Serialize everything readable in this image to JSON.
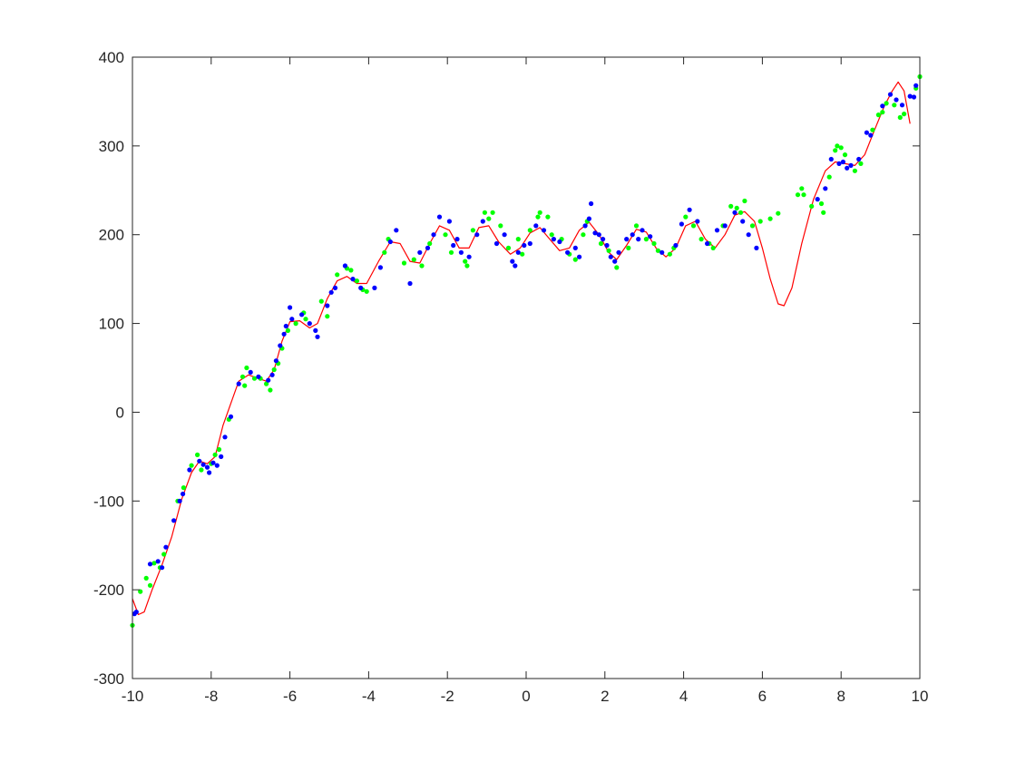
{
  "chart_data": {
    "type": "scatter",
    "title": "",
    "xlabel": "",
    "ylabel": "",
    "xlim": [
      -10,
      10
    ],
    "ylim": [
      -300,
      400
    ],
    "x_ticks": [
      "-10",
      "-8",
      "-6",
      "-4",
      "-2",
      "0",
      "2",
      "4",
      "6",
      "8",
      "10"
    ],
    "y_ticks": [
      "400",
      "300",
      "200",
      "100",
      "0",
      "-100",
      "-200",
      "-300"
    ],
    "grid": false,
    "box": true,
    "colors": {
      "blue": "#0000ff",
      "green": "#00ff00",
      "red": "#ff0000",
      "axis": "#262626"
    },
    "series": [
      {
        "type": "scatter",
        "color": "#0000ff",
        "points": [
          [
            -9.95,
            -227
          ],
          [
            -9.9,
            -225
          ],
          [
            -9.55,
            -171
          ],
          [
            -9.35,
            -168
          ],
          [
            -9.25,
            -175
          ],
          [
            -9.15,
            -152
          ],
          [
            -8.95,
            -122
          ],
          [
            -8.8,
            -100
          ],
          [
            -8.72,
            -92
          ],
          [
            -8.55,
            -65
          ],
          [
            -8.3,
            -55
          ],
          [
            -8.2,
            -59
          ],
          [
            -8.1,
            -62
          ],
          [
            -8.05,
            -68
          ],
          [
            -7.95,
            -57
          ],
          [
            -7.85,
            -60
          ],
          [
            -7.75,
            -50
          ],
          [
            -7.65,
            -28
          ],
          [
            -7.5,
            -5
          ],
          [
            -7.3,
            32
          ],
          [
            -7.0,
            45
          ],
          [
            -6.8,
            40
          ],
          [
            -6.55,
            36
          ],
          [
            -6.45,
            42
          ],
          [
            -6.35,
            58
          ],
          [
            -6.25,
            75
          ],
          [
            -6.15,
            88
          ],
          [
            -6.1,
            97
          ],
          [
            -6.0,
            118
          ],
          [
            -5.95,
            105
          ],
          [
            -5.7,
            110
          ],
          [
            -5.5,
            100
          ],
          [
            -5.35,
            92
          ],
          [
            -5.3,
            85
          ],
          [
            -5.05,
            120
          ],
          [
            -4.95,
            135
          ],
          [
            -4.85,
            140
          ],
          [
            -4.6,
            165
          ],
          [
            -4.4,
            150
          ],
          [
            -4.2,
            140
          ],
          [
            -3.85,
            140
          ],
          [
            -3.7,
            163
          ],
          [
            -3.45,
            192
          ],
          [
            -3.3,
            205
          ],
          [
            -2.95,
            145
          ],
          [
            -2.7,
            180
          ],
          [
            -2.5,
            185
          ],
          [
            -2.35,
            200
          ],
          [
            -2.2,
            220
          ],
          [
            -1.95,
            215
          ],
          [
            -1.85,
            188
          ],
          [
            -1.75,
            195
          ],
          [
            -1.65,
            180
          ],
          [
            -1.45,
            175
          ],
          [
            -1.25,
            200
          ],
          [
            -1.1,
            215
          ],
          [
            -0.75,
            190
          ],
          [
            -0.55,
            200
          ],
          [
            -0.35,
            170
          ],
          [
            -0.28,
            165
          ],
          [
            -0.2,
            180
          ],
          [
            -0.05,
            188
          ],
          [
            0.1,
            190
          ],
          [
            0.25,
            210
          ],
          [
            0.45,
            205
          ],
          [
            0.7,
            195
          ],
          [
            0.85,
            192
          ],
          [
            1.05,
            180
          ],
          [
            1.25,
            185
          ],
          [
            1.35,
            175
          ],
          [
            1.5,
            210
          ],
          [
            1.6,
            218
          ],
          [
            1.65,
            235
          ],
          [
            1.75,
            202
          ],
          [
            1.85,
            200
          ],
          [
            1.95,
            195
          ],
          [
            2.05,
            188
          ],
          [
            2.15,
            175
          ],
          [
            2.25,
            170
          ],
          [
            2.35,
            180
          ],
          [
            2.55,
            195
          ],
          [
            2.7,
            200
          ],
          [
            2.85,
            195
          ],
          [
            2.95,
            205
          ],
          [
            3.15,
            198
          ],
          [
            3.45,
            180
          ],
          [
            3.8,
            188
          ],
          [
            3.95,
            212
          ],
          [
            4.15,
            228
          ],
          [
            4.35,
            215
          ],
          [
            4.6,
            190
          ],
          [
            4.85,
            205
          ],
          [
            5.05,
            210
          ],
          [
            5.3,
            225
          ],
          [
            5.5,
            215
          ],
          [
            5.65,
            200
          ],
          [
            5.85,
            185
          ],
          [
            7.4,
            240
          ],
          [
            7.6,
            252
          ],
          [
            7.75,
            285
          ],
          [
            7.95,
            280
          ],
          [
            8.05,
            282
          ],
          [
            8.15,
            275
          ],
          [
            8.25,
            278
          ],
          [
            8.45,
            285
          ],
          [
            8.65,
            315
          ],
          [
            8.75,
            312
          ],
          [
            9.05,
            345
          ],
          [
            9.25,
            358
          ],
          [
            9.4,
            352
          ],
          [
            9.55,
            346
          ],
          [
            9.75,
            356
          ],
          [
            9.85,
            355
          ],
          [
            9.9,
            368
          ]
        ]
      },
      {
        "type": "scatter",
        "color": "#00ff00",
        "points": [
          [
            -10.0,
            -240
          ],
          [
            -9.8,
            -202
          ],
          [
            -9.65,
            -187
          ],
          [
            -9.55,
            -195
          ],
          [
            -9.45,
            -170
          ],
          [
            -9.3,
            -175
          ],
          [
            -9.2,
            -160
          ],
          [
            -8.85,
            -100
          ],
          [
            -8.7,
            -85
          ],
          [
            -8.5,
            -60
          ],
          [
            -8.35,
            -48
          ],
          [
            -8.25,
            -65
          ],
          [
            -8.0,
            -58
          ],
          [
            -7.9,
            -48
          ],
          [
            -7.8,
            -42
          ],
          [
            -7.55,
            -8
          ],
          [
            -7.2,
            40
          ],
          [
            -7.15,
            30
          ],
          [
            -7.1,
            50
          ],
          [
            -6.9,
            38
          ],
          [
            -6.75,
            38
          ],
          [
            -6.6,
            32
          ],
          [
            -6.5,
            25
          ],
          [
            -6.4,
            48
          ],
          [
            -6.3,
            55
          ],
          [
            -6.2,
            72
          ],
          [
            -6.05,
            92
          ],
          [
            -5.85,
            100
          ],
          [
            -5.65,
            112
          ],
          [
            -5.6,
            105
          ],
          [
            -5.2,
            125
          ],
          [
            -5.05,
            108
          ],
          [
            -4.8,
            155
          ],
          [
            -4.55,
            162
          ],
          [
            -4.45,
            160
          ],
          [
            -4.3,
            148
          ],
          [
            -4.15,
            138
          ],
          [
            -4.05,
            136
          ],
          [
            -3.6,
            180
          ],
          [
            -3.5,
            195
          ],
          [
            -3.1,
            168
          ],
          [
            -2.85,
            172
          ],
          [
            -2.65,
            165
          ],
          [
            -2.45,
            190
          ],
          [
            -2.05,
            200
          ],
          [
            -1.9,
            180
          ],
          [
            -1.55,
            170
          ],
          [
            -1.5,
            165
          ],
          [
            -1.35,
            205
          ],
          [
            -1.05,
            225
          ],
          [
            -0.95,
            218
          ],
          [
            -0.85,
            225
          ],
          [
            -0.65,
            210
          ],
          [
            -0.45,
            185
          ],
          [
            -0.2,
            195
          ],
          [
            -0.1,
            178
          ],
          [
            0.1,
            205
          ],
          [
            0.3,
            220
          ],
          [
            0.35,
            225
          ],
          [
            0.55,
            220
          ],
          [
            0.65,
            200
          ],
          [
            0.9,
            195
          ],
          [
            1.1,
            178
          ],
          [
            1.25,
            172
          ],
          [
            1.45,
            200
          ],
          [
            1.55,
            215
          ],
          [
            1.9,
            190
          ],
          [
            2.1,
            182
          ],
          [
            2.3,
            163
          ],
          [
            2.6,
            185
          ],
          [
            2.8,
            210
          ],
          [
            3.05,
            195
          ],
          [
            3.25,
            190
          ],
          [
            3.35,
            182
          ],
          [
            3.65,
            178
          ],
          [
            3.75,
            185
          ],
          [
            4.05,
            220
          ],
          [
            4.25,
            210
          ],
          [
            4.45,
            195
          ],
          [
            4.65,
            190
          ],
          [
            4.75,
            185
          ],
          [
            5.0,
            210
          ],
          [
            5.2,
            232
          ],
          [
            5.35,
            230
          ],
          [
            5.45,
            225
          ],
          [
            5.55,
            238
          ],
          [
            5.75,
            210
          ],
          [
            5.95,
            215
          ],
          [
            6.2,
            218
          ],
          [
            6.4,
            224
          ],
          [
            6.9,
            245
          ],
          [
            7.0,
            252
          ],
          [
            7.05,
            245
          ],
          [
            7.25,
            232
          ],
          [
            7.5,
            235
          ],
          [
            7.55,
            225
          ],
          [
            7.7,
            265
          ],
          [
            7.85,
            295
          ],
          [
            7.9,
            300
          ],
          [
            8.0,
            298
          ],
          [
            8.1,
            290
          ],
          [
            8.35,
            272
          ],
          [
            8.5,
            280
          ],
          [
            8.8,
            318
          ],
          [
            8.95,
            335
          ],
          [
            9.05,
            338
          ],
          [
            9.15,
            348
          ],
          [
            9.35,
            346
          ],
          [
            9.5,
            332
          ],
          [
            9.6,
            336
          ],
          [
            9.9,
            365
          ],
          [
            10.0,
            378
          ]
        ]
      },
      {
        "type": "line",
        "color": "#ff0000",
        "points": [
          [
            -10.0,
            -210
          ],
          [
            -9.85,
            -228
          ],
          [
            -9.7,
            -225
          ],
          [
            -9.5,
            -200
          ],
          [
            -9.25,
            -172
          ],
          [
            -9.0,
            -140
          ],
          [
            -8.75,
            -98
          ],
          [
            -8.5,
            -68
          ],
          [
            -8.3,
            -55
          ],
          [
            -8.1,
            -58
          ],
          [
            -7.9,
            -50
          ],
          [
            -7.7,
            -15
          ],
          [
            -7.5,
            10
          ],
          [
            -7.3,
            35
          ],
          [
            -7.05,
            42
          ],
          [
            -6.8,
            38
          ],
          [
            -6.6,
            35
          ],
          [
            -6.4,
            48
          ],
          [
            -6.2,
            80
          ],
          [
            -6.0,
            102
          ],
          [
            -5.75,
            103
          ],
          [
            -5.5,
            95
          ],
          [
            -5.3,
            100
          ],
          [
            -5.05,
            128
          ],
          [
            -4.8,
            148
          ],
          [
            -4.55,
            153
          ],
          [
            -4.3,
            145
          ],
          [
            -4.05,
            145
          ],
          [
            -3.75,
            170
          ],
          [
            -3.45,
            192
          ],
          [
            -3.2,
            190
          ],
          [
            -2.95,
            170
          ],
          [
            -2.7,
            168
          ],
          [
            -2.45,
            190
          ],
          [
            -2.2,
            210
          ],
          [
            -1.95,
            205
          ],
          [
            -1.7,
            185
          ],
          [
            -1.45,
            185
          ],
          [
            -1.2,
            208
          ],
          [
            -0.95,
            210
          ],
          [
            -0.7,
            192
          ],
          [
            -0.4,
            178
          ],
          [
            -0.15,
            185
          ],
          [
            0.1,
            202
          ],
          [
            0.35,
            208
          ],
          [
            0.6,
            195
          ],
          [
            0.85,
            182
          ],
          [
            1.1,
            185
          ],
          [
            1.35,
            205
          ],
          [
            1.6,
            214
          ],
          [
            1.85,
            200
          ],
          [
            2.1,
            180
          ],
          [
            2.3,
            172
          ],
          [
            2.55,
            188
          ],
          [
            2.8,
            206
          ],
          [
            3.05,
            203
          ],
          [
            3.3,
            185
          ],
          [
            3.55,
            175
          ],
          [
            3.8,
            185
          ],
          [
            4.05,
            210
          ],
          [
            4.3,
            215
          ],
          [
            4.55,
            195
          ],
          [
            4.8,
            185
          ],
          [
            5.05,
            200
          ],
          [
            5.3,
            222
          ],
          [
            5.55,
            226
          ],
          [
            5.8,
            215
          ],
          [
            6.0,
            185
          ],
          [
            6.2,
            150
          ],
          [
            6.4,
            122
          ],
          [
            6.55,
            120
          ],
          [
            6.75,
            140
          ],
          [
            7.0,
            190
          ],
          [
            7.3,
            240
          ],
          [
            7.6,
            272
          ],
          [
            7.85,
            282
          ],
          [
            8.1,
            280
          ],
          [
            8.35,
            278
          ],
          [
            8.6,
            290
          ],
          [
            8.85,
            318
          ],
          [
            9.1,
            345
          ],
          [
            9.3,
            362
          ],
          [
            9.45,
            372
          ],
          [
            9.6,
            362
          ],
          [
            9.75,
            325
          ]
        ]
      }
    ]
  }
}
